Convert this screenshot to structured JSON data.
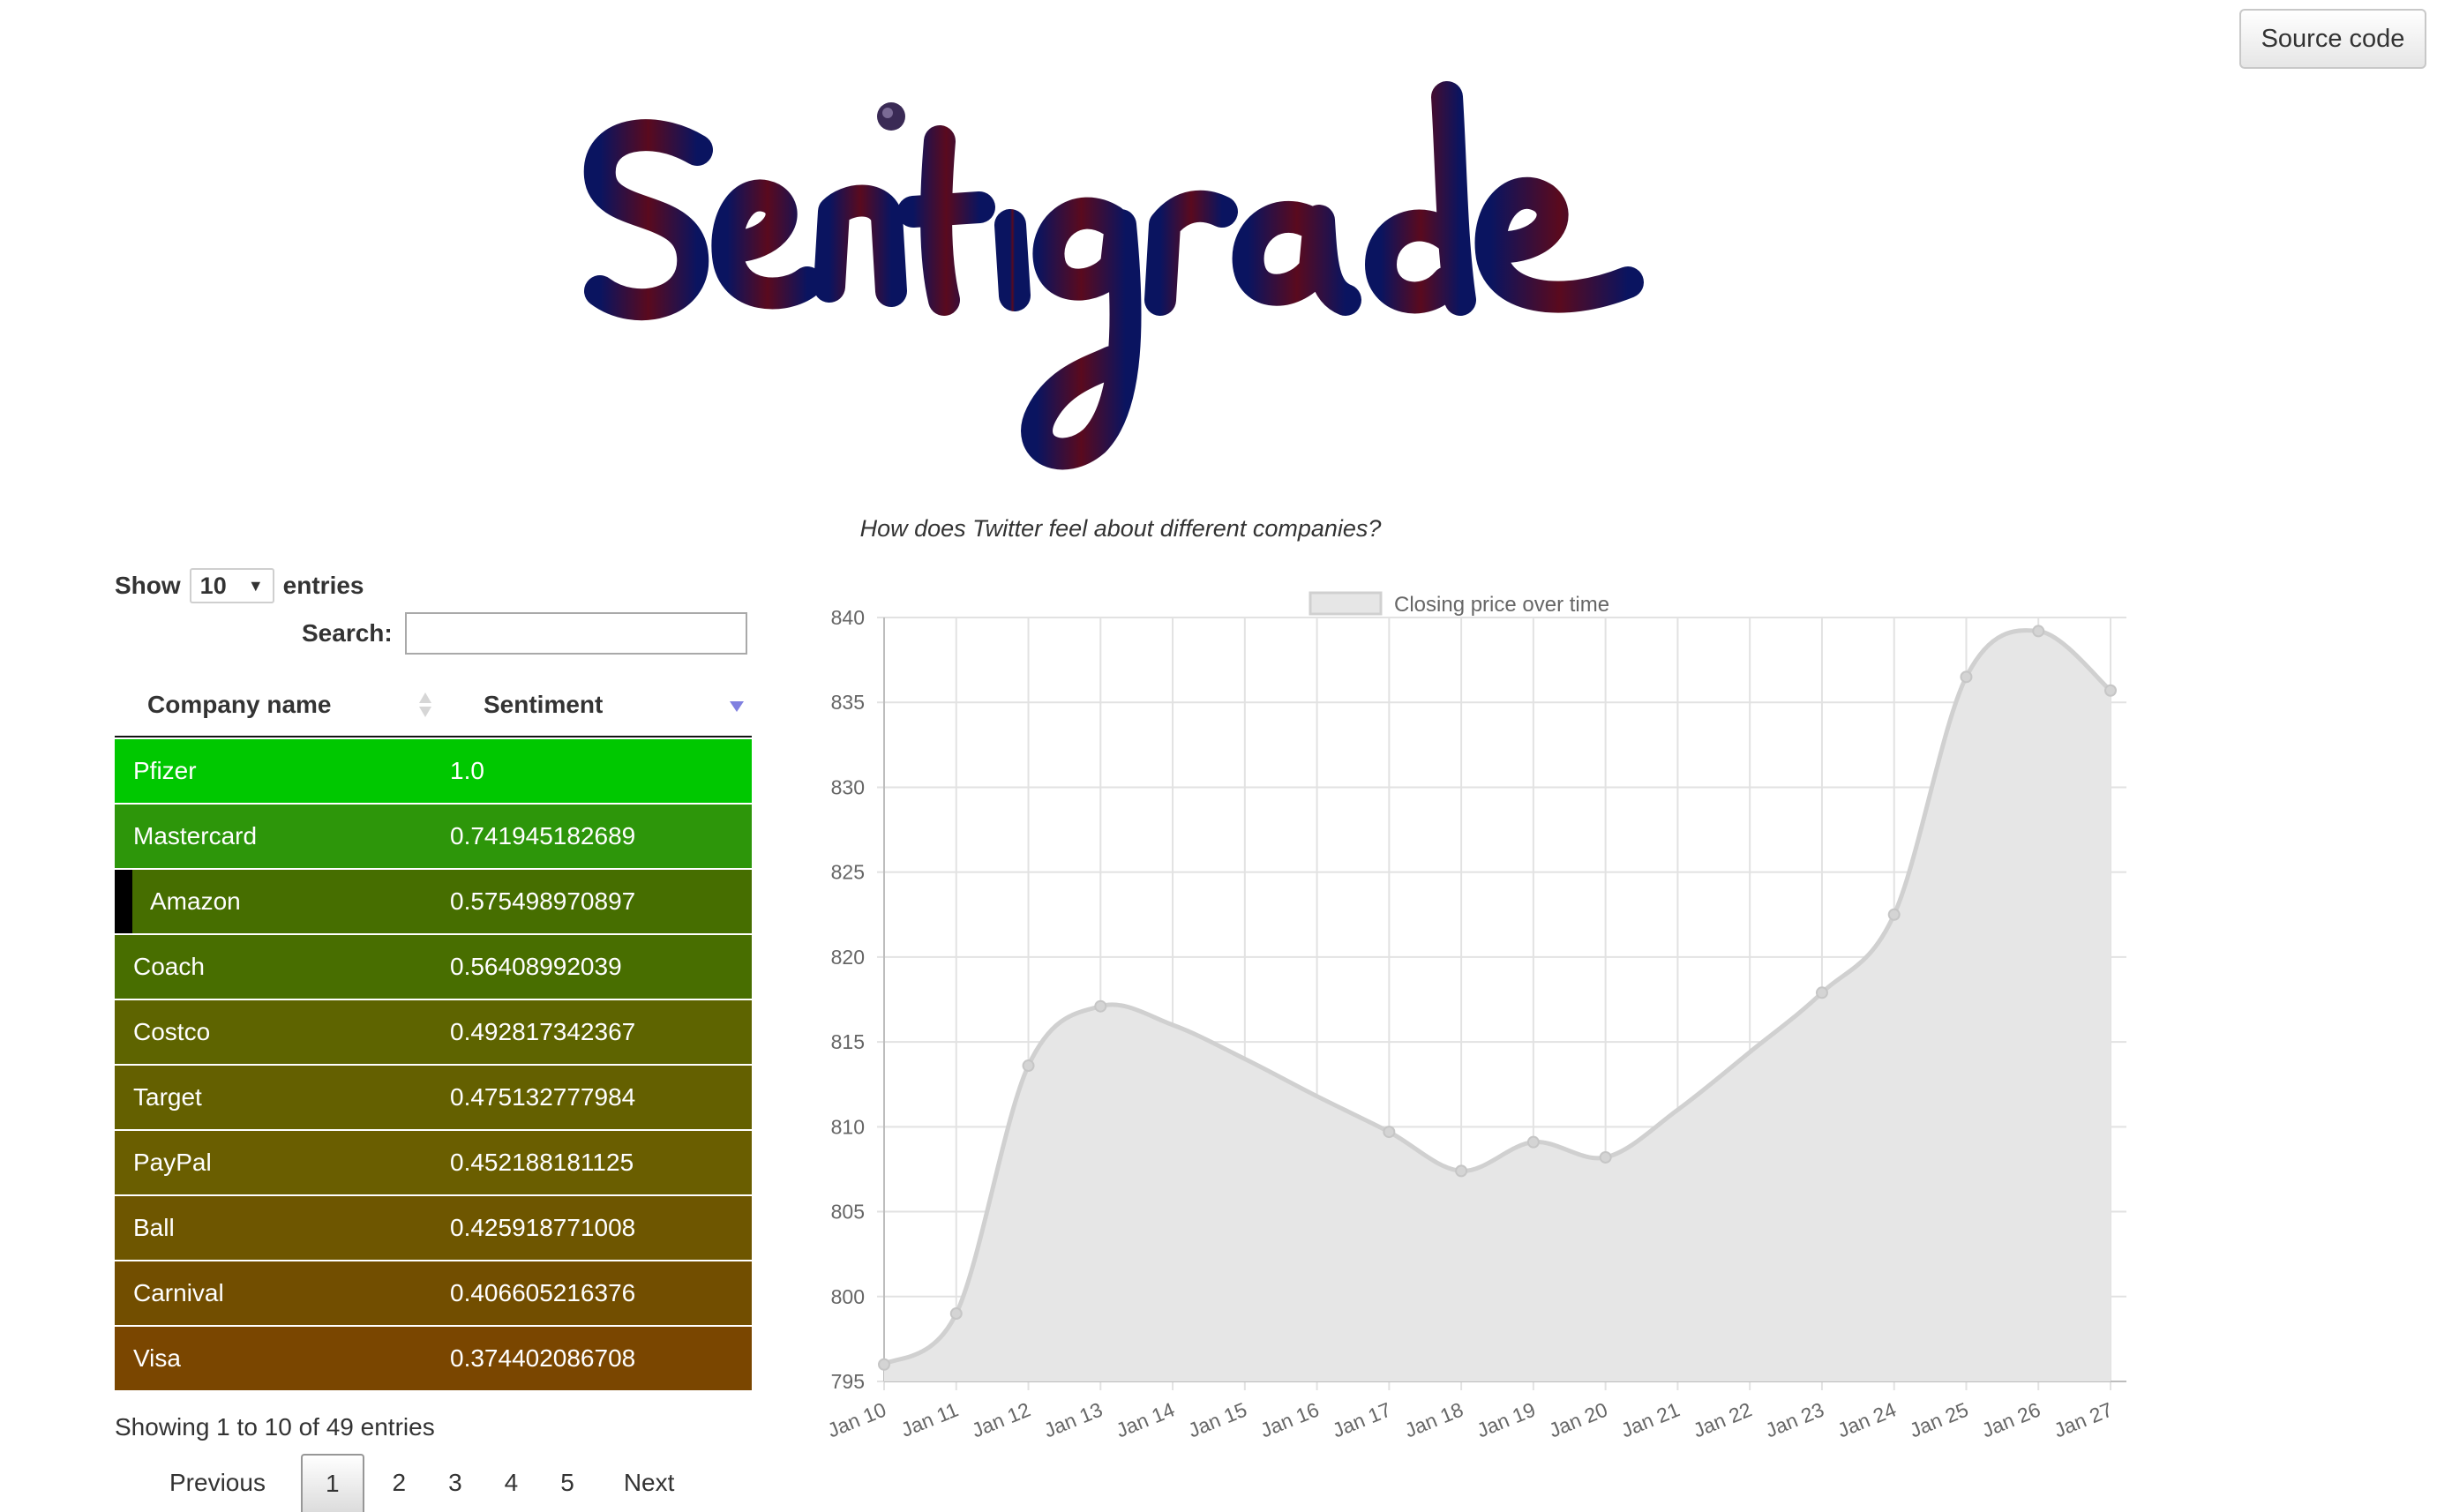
{
  "header": {
    "source_button": "Source code",
    "logo_text": "Sentigrade",
    "tagline": "How does Twitter feel about different companies?"
  },
  "controls": {
    "show_label": "Show",
    "entries_value": "10",
    "entries_label": "entries",
    "search_label": "Search:",
    "search_value": ""
  },
  "table": {
    "columns": [
      "Company name",
      "Sentiment"
    ],
    "sort_column": "Sentiment",
    "sort_direction": "descending",
    "rows": [
      {
        "company": "Pfizer",
        "sentiment": "1.0",
        "color": "#00c800"
      },
      {
        "company": "Mastercard",
        "sentiment": "0.741945182689",
        "color": "#2d960a"
      },
      {
        "company": "Amazon",
        "sentiment": "0.575498970897",
        "color": "#466e00"
      },
      {
        "company": "Coach",
        "sentiment": "0.56408992039",
        "color": "#486e00"
      },
      {
        "company": "Costco",
        "sentiment": "0.492817342367",
        "color": "#5e6400"
      },
      {
        "company": "Target",
        "sentiment": "0.475132777984",
        "color": "#646000"
      },
      {
        "company": "PayPal",
        "sentiment": "0.452188181125",
        "color": "#6a5e00"
      },
      {
        "company": "Ball",
        "sentiment": "0.425918771008",
        "color": "#6e5600"
      },
      {
        "company": "Carnival",
        "sentiment": "0.406605216376",
        "color": "#724e00"
      },
      {
        "company": "Visa",
        "sentiment": "0.374402086708",
        "color": "#7a4600"
      }
    ],
    "focused_row": "Amazon"
  },
  "pagination": {
    "info": "Showing 1 to 10 of 49 entries",
    "previous": "Previous",
    "pages": [
      "1",
      "2",
      "3",
      "4",
      "5"
    ],
    "current_page": "1",
    "next": "Next"
  },
  "chart_data": {
    "type": "area",
    "legend": "Closing price over time",
    "legend_position": "top",
    "x": [
      "Jan 10",
      "Jan 11",
      "Jan 12",
      "Jan 13",
      "Jan 14",
      "Jan 15",
      "Jan 16",
      "Jan 17",
      "Jan 18",
      "Jan 19",
      "Jan 20",
      "Jan 21",
      "Jan 22",
      "Jan 23",
      "Jan 24",
      "Jan 25",
      "Jan 26",
      "Jan 27"
    ],
    "markers": [
      true,
      true,
      true,
      true,
      false,
      false,
      false,
      true,
      true,
      true,
      true,
      false,
      false,
      true,
      true,
      true,
      true,
      true
    ],
    "series": [
      {
        "name": "Closing price over time",
        "values": [
          796.0,
          799.0,
          813.6,
          817.1,
          816.0,
          814.0,
          811.8,
          809.7,
          807.4,
          809.1,
          808.2,
          811.0,
          814.4,
          817.9,
          822.5,
          836.5,
          839.2,
          835.7
        ]
      }
    ],
    "ylim": [
      795,
      840
    ],
    "yticks": [
      795,
      800,
      805,
      810,
      815,
      820,
      825,
      830,
      835,
      840
    ],
    "grid": true,
    "fill_color": "#e6e6e6",
    "line_color": "#d0d0d0"
  }
}
